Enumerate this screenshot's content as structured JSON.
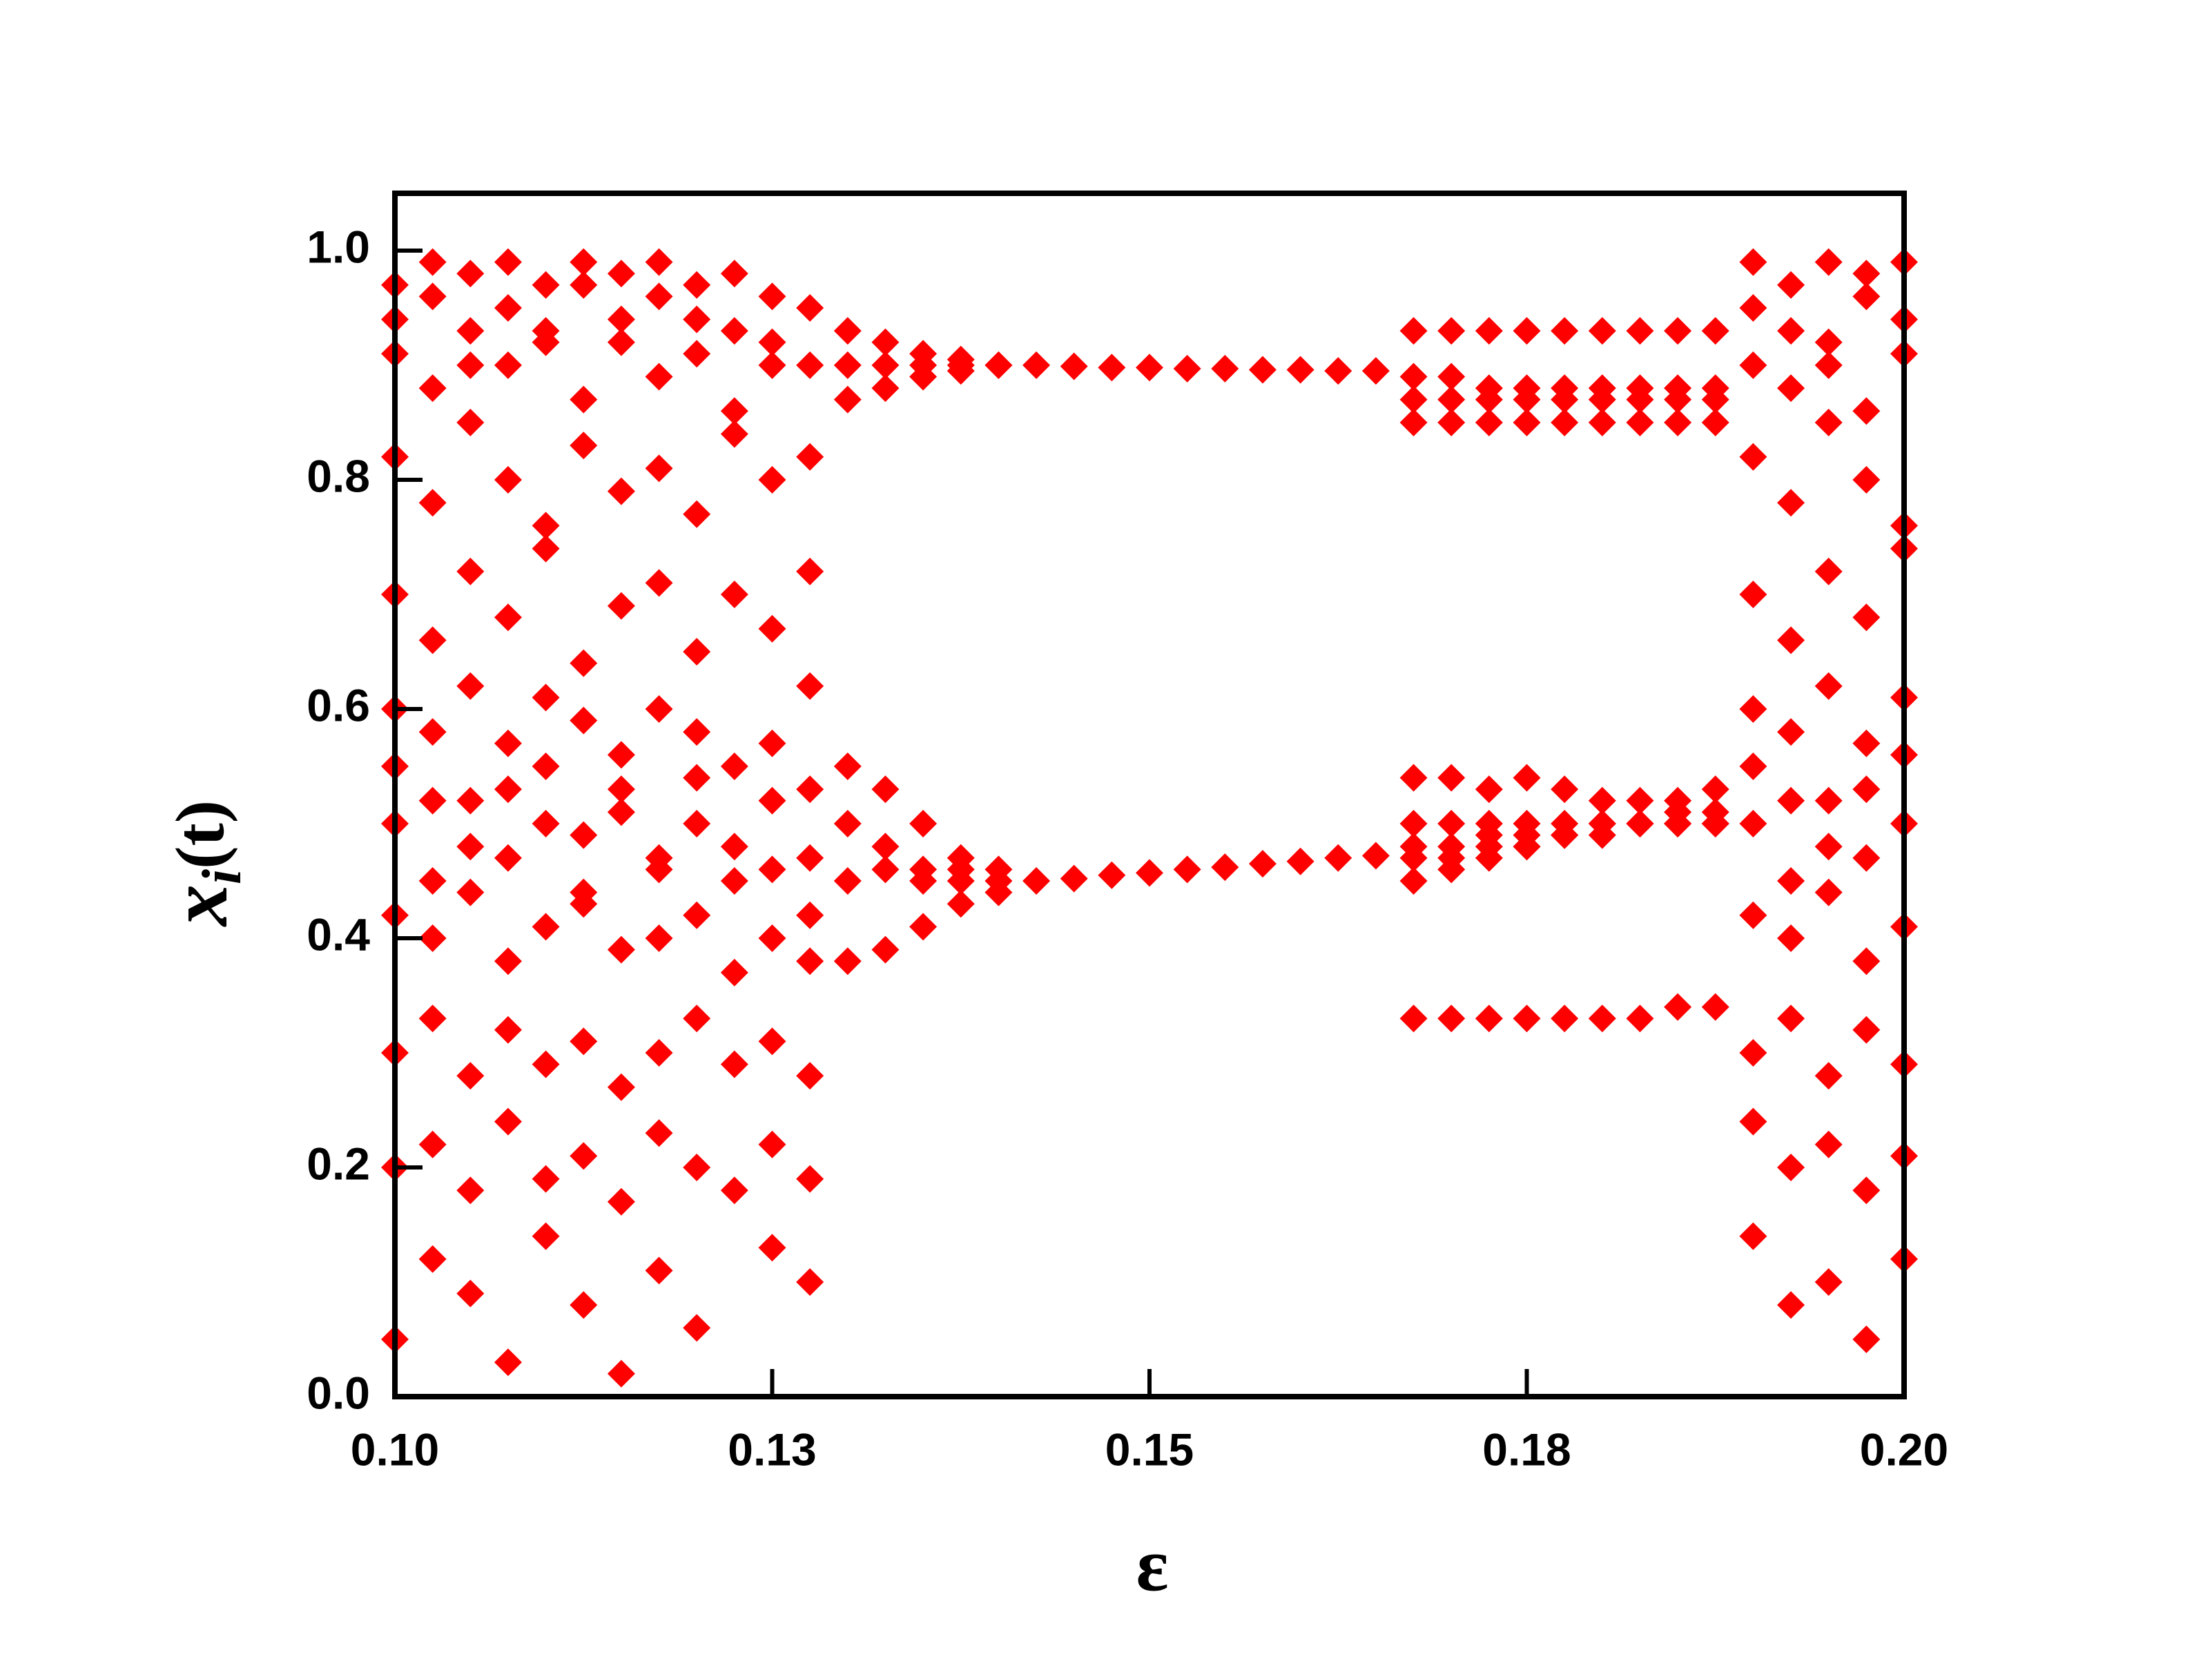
{
  "chart_data": {
    "type": "scatter",
    "x_label": "ε",
    "y_label": [
      "x",
      "i",
      "(t)"
    ],
    "color": "#ff0000",
    "xlim": [
      0.1,
      0.2
    ],
    "ylim": [
      0,
      1.05
    ],
    "xticks": [
      {
        "value": 0.1,
        "label": "0.10"
      },
      {
        "value": 0.125,
        "label": "0.13"
      },
      0.15,
      {
        "value": 0.175,
        "label": "0.18"
      },
      {
        "value": 0.2,
        "label": "0.20"
      }
    ],
    "yticks": [
      {
        "value": 0,
        "label": "0.0"
      },
      0.2,
      0.4,
      0.6,
      0.8,
      {
        "value": 1,
        "label": "1.0"
      }
    ],
    "x": [
      0.1,
      0.1025,
      0.105,
      0.1075,
      0.11,
      0.1125,
      0.115,
      0.1175,
      0.12,
      0.1225,
      0.125,
      0.1275,
      0.13,
      0.1325,
      0.135,
      0.1375,
      0.14,
      0.1425,
      0.145,
      0.1475,
      0.15,
      0.1525,
      0.155,
      0.1575,
      0.16,
      0.1625,
      0.165,
      0.1675,
      0.17,
      0.1725,
      0.175,
      0.1775,
      0.18,
      0.1825,
      0.185,
      0.1875,
      0.19,
      0.1925,
      0.195,
      0.1975,
      0.2
    ],
    "series": [
      {
        "values": [
          0.97,
          0.99,
          0.98,
          0.99,
          0.97,
          0.99,
          0.98,
          0.99,
          0.97,
          0.98,
          0.96,
          0.95,
          0.93,
          0.92,
          0.91,
          0.905,
          0.9,
          0.9,
          0.899,
          0.898,
          0.898,
          0.897,
          0.897,
          0.896,
          0.896,
          0.895,
          0.895,
          0.93,
          0.93,
          0.93,
          0.93,
          0.93,
          0.93,
          0.93,
          0.93,
          0.93,
          0.99,
          0.97,
          0.99,
          0.98,
          0.99
        ]
      },
      {
        "values": [
          0.91,
          0.88,
          0.93,
          0.9,
          0.92,
          0.87,
          0.94,
          0.89,
          0.91,
          0.86,
          0.9,
          0.82,
          0.87,
          0.88,
          0.89,
          0.895,
          0.9,
          null,
          null,
          null,
          null,
          null,
          null,
          null,
          null,
          null,
          null,
          0.85,
          0.85,
          0.85,
          0.85,
          0.85,
          0.85,
          0.85,
          0.85,
          0.85,
          0.9,
          0.88,
          0.92,
          0.86,
          0.91
        ]
      },
      {
        "values": [
          0.82,
          0.78,
          0.85,
          0.8,
          0.76,
          0.83,
          0.79,
          0.81,
          0.77,
          0.84,
          0.8,
          0.72,
          null,
          null,
          null,
          null,
          null,
          null,
          null,
          null,
          null,
          null,
          null,
          null,
          null,
          null,
          null,
          0.89,
          0.89,
          0.88,
          0.88,
          0.88,
          0.88,
          0.88,
          0.88,
          0.88,
          0.82,
          0.78,
          0.85,
          0.8,
          0.76
        ]
      },
      {
        "values": [
          0.7,
          0.66,
          0.72,
          0.68,
          0.74,
          0.64,
          0.69,
          0.71,
          0.65,
          0.7,
          0.67,
          0.62,
          null,
          null,
          null,
          null,
          null,
          null,
          null,
          null,
          null,
          null,
          null,
          null,
          null,
          null,
          null,
          0.87,
          0.87,
          0.87,
          0.87,
          0.87,
          0.87,
          0.87,
          0.87,
          0.87,
          0.7,
          0.66,
          0.72,
          0.68,
          0.74
        ]
      },
      {
        "values": [
          0.6,
          0.58,
          0.62,
          0.57,
          0.61,
          0.59,
          0.56,
          0.6,
          0.58,
          0.55,
          0.57,
          0.53,
          0.55,
          0.53,
          0.5,
          0.47,
          0.46,
          0.45,
          0.452,
          0.455,
          0.457,
          0.46,
          0.462,
          0.465,
          0.467,
          0.47,
          0.472,
          0.54,
          0.54,
          0.53,
          0.54,
          0.53,
          0.52,
          0.52,
          0.52,
          0.53,
          0.6,
          0.58,
          0.62,
          0.57,
          0.61
        ]
      },
      {
        "values": [
          0.5,
          0.52,
          0.48,
          0.53,
          0.5,
          0.49,
          0.51,
          0.47,
          0.5,
          0.48,
          0.46,
          0.42,
          0.38,
          0.39,
          0.41,
          0.43,
          0.44,
          null,
          null,
          null,
          null,
          null,
          null,
          null,
          null,
          null,
          null,
          0.45,
          0.46,
          0.47,
          0.48,
          0.49,
          0.5,
          0.5,
          0.51,
          0.51,
          0.5,
          0.52,
          0.48,
          0.53,
          0.5
        ]
      },
      {
        "values": [
          0.42,
          0.4,
          0.44,
          0.38,
          0.41,
          0.43,
          0.39,
          0.4,
          0.42,
          0.37,
          0.4,
          0.38,
          0.45,
          0.46,
          0.45,
          0.45,
          0.45,
          null,
          null,
          null,
          null,
          null,
          null,
          null,
          null,
          null,
          null,
          0.5,
          0.5,
          0.5,
          0.5,
          0.5,
          0.5,
          0.5,
          0.5,
          0.5,
          0.42,
          0.4,
          0.44,
          0.38,
          0.41
        ]
      },
      {
        "values": [
          0.3,
          0.33,
          0.28,
          0.32,
          0.29,
          0.31,
          0.27,
          0.3,
          0.33,
          0.29,
          0.31,
          0.28,
          null,
          null,
          null,
          null,
          null,
          null,
          null,
          null,
          null,
          null,
          null,
          null,
          null,
          null,
          null,
          0.33,
          0.33,
          0.33,
          0.33,
          0.33,
          0.33,
          0.33,
          0.34,
          0.34,
          0.3,
          0.33,
          0.28,
          0.32,
          0.29
        ]
      },
      {
        "values": [
          0.2,
          0.22,
          0.18,
          0.24,
          0.19,
          0.21,
          0.17,
          0.23,
          0.2,
          0.18,
          0.22,
          0.19,
          null,
          null,
          null,
          null,
          null,
          null,
          null,
          null,
          null,
          null,
          null,
          null,
          null,
          null,
          null,
          null,
          null,
          null,
          null,
          null,
          null,
          null,
          null,
          null,
          0.24,
          0.2,
          0.22,
          0.18,
          0.21
        ]
      },
      {
        "values": [
          0.05,
          0.12,
          0.09,
          0.03,
          0.14,
          0.08,
          0.02,
          0.11,
          0.06,
          null,
          0.13,
          0.1,
          null,
          null,
          null,
          null,
          null,
          null,
          null,
          null,
          null,
          null,
          null,
          null,
          null,
          null,
          null,
          null,
          null,
          null,
          null,
          null,
          null,
          null,
          null,
          null,
          0.14,
          0.08,
          0.1,
          0.05,
          0.12
        ]
      },
      {
        "values": [
          0.94,
          0.96,
          0.9,
          0.95,
          0.93,
          0.97,
          0.92,
          0.96,
          0.94,
          0.93,
          0.92,
          0.9,
          0.9,
          0.9,
          0.9,
          0.9,
          null,
          null,
          null,
          null,
          null,
          null,
          null,
          null,
          null,
          null,
          null,
          0.48,
          0.48,
          0.49,
          0.49,
          0.49,
          0.5,
          0.5,
          0.5,
          0.5,
          0.95,
          0.93,
          0.9,
          0.96,
          0.94
        ]
      },
      {
        "values": [
          0.55,
          0.45,
          0.52,
          0.47,
          0.55,
          0.44,
          0.53,
          0.46,
          0.54,
          0.45,
          0.52,
          0.47,
          0.5,
          0.48,
          0.46,
          0.46,
          null,
          null,
          null,
          null,
          null,
          null,
          null,
          null,
          null,
          null,
          null,
          0.47,
          0.47,
          0.48,
          0.48,
          0.49,
          0.49,
          0.5,
          0.5,
          0.5,
          0.55,
          0.45,
          0.52,
          0.47,
          0.56
        ]
      }
    ]
  }
}
